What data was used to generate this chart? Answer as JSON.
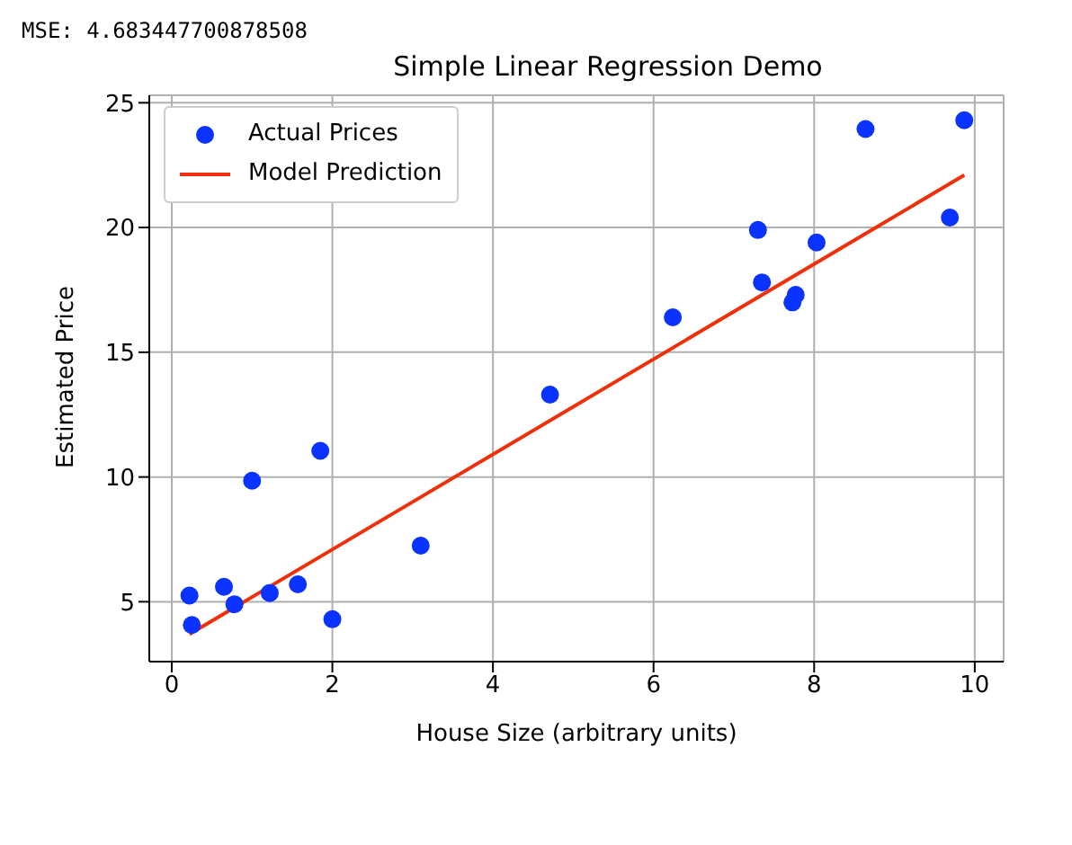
{
  "chart_data": {
    "type": "scatter",
    "title": "Simple Linear Regression Demo",
    "xlabel": "House Size (arbitrary units)",
    "ylabel": "Estimated Price",
    "annotations": [
      "MSE: 4.683447700878508"
    ],
    "xlim": [
      -0.28,
      10.36
    ],
    "xticks": [
      0,
      2,
      4,
      6,
      8,
      10
    ],
    "ylim": [
      2.6,
      25.3
    ],
    "yticks": [
      5,
      10,
      15,
      20,
      25
    ],
    "grid": true,
    "legend": "top left",
    "marker": "circle",
    "series": [
      {
        "name": "Actual Prices",
        "color": "#0a33ff",
        "x": [
          0.22,
          0.25,
          0.65,
          0.78,
          1.0,
          1.22,
          1.57,
          1.85,
          2.0,
          3.1,
          4.71,
          6.24,
          7.3,
          7.35,
          7.73,
          7.77,
          8.03,
          8.64,
          9.69,
          9.87
        ],
        "values": [
          5.25,
          4.07,
          5.6,
          4.9,
          9.85,
          5.35,
          5.7,
          11.05,
          4.3,
          7.25,
          13.3,
          16.4,
          19.9,
          17.8,
          17.0,
          17.3,
          19.4,
          23.95,
          20.4,
          24.3
        ]
      },
      {
        "name": "Model Prediction",
        "type": "line",
        "color": "#f0300a",
        "line_style": "solid",
        "marker": "none",
        "x": [
          0.22,
          9.87
        ],
        "values": [
          3.7,
          22.1
        ]
      }
    ]
  }
}
